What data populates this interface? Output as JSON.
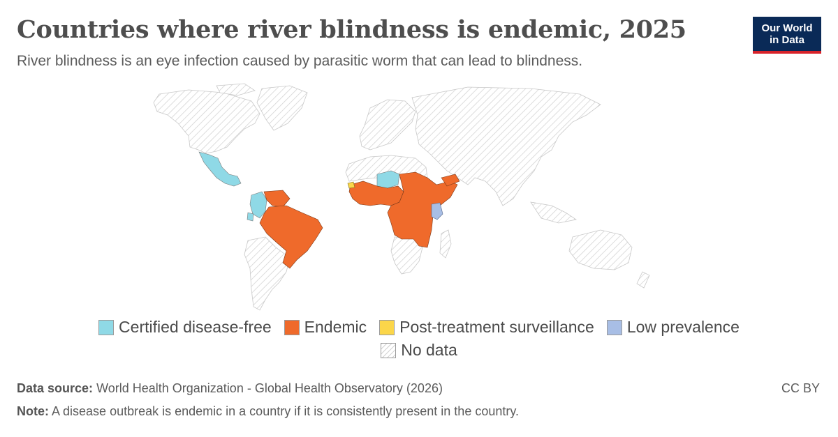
{
  "header": {
    "title": "Countries where river blindness is endemic, 2025",
    "subtitle": "River blindness is an eye infection caused by parasitic worm that can lead to blindness."
  },
  "logo": {
    "line1": "Our World",
    "line2": "in Data"
  },
  "legend": {
    "items": [
      {
        "label": "Certified disease-free",
        "color": "#8fd9e6"
      },
      {
        "label": "Endemic",
        "color": "#ef6a2b"
      },
      {
        "label": "Post-treatment surveillance",
        "color": "#fbd64a"
      },
      {
        "label": "Low prevalence",
        "color": "#a8bee5"
      },
      {
        "label": "No data",
        "color": "hatched"
      }
    ]
  },
  "footer": {
    "source_label": "Data source:",
    "source_text": "World Health Organization - Global Health Observatory (2026)",
    "note_label": "Note:",
    "note_text": "A disease outbreak is endemic in a country if it is consistently present in the country.",
    "license": "CC BY"
  },
  "map_data": {
    "categories": {
      "Certified disease-free": [
        "Mexico",
        "Guatemala",
        "Colombia",
        "Ecuador",
        "Niger"
      ],
      "Endemic": [
        "Venezuela",
        "Brazil",
        "Senegal",
        "Guinea",
        "Sierra Leone",
        "Liberia",
        "Côte d'Ivoire",
        "Ghana",
        "Togo",
        "Benin",
        "Nigeria",
        "Cameroon",
        "Chad",
        "Central African Republic",
        "Sudan",
        "South Sudan",
        "Ethiopia",
        "Yemen",
        "Uganda",
        "Democratic Republic of the Congo",
        "Congo",
        "Gabon",
        "Equatorial Guinea",
        "Angola",
        "Tanzania",
        "Malawi",
        "Mozambique",
        "Burundi",
        "Mali",
        "Burkina Faso"
      ],
      "Post-treatment surveillance": [
        "Guinea-Bissau"
      ],
      "Low prevalence": [
        "Kenya"
      ]
    }
  }
}
